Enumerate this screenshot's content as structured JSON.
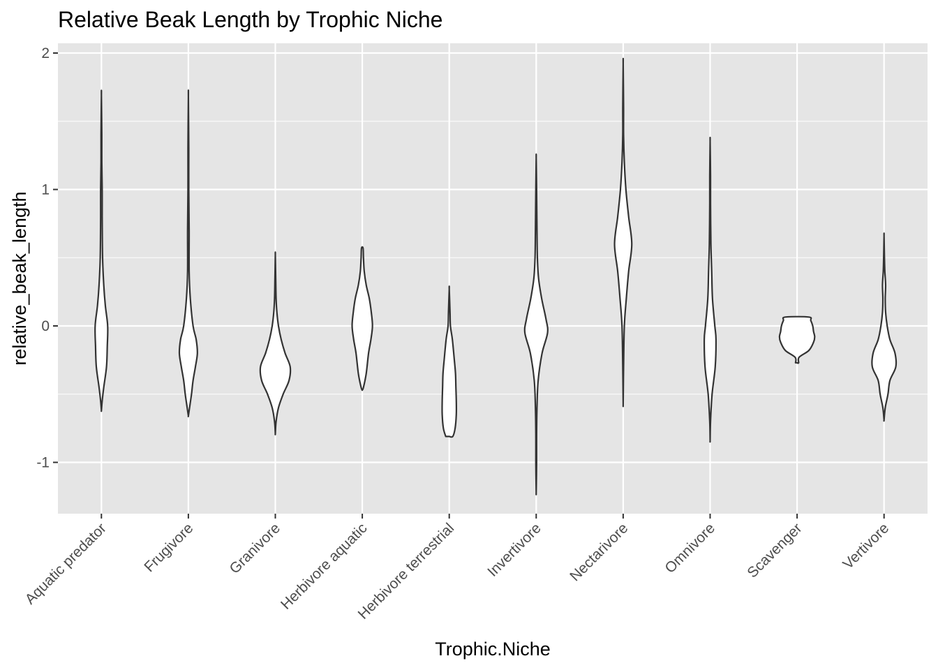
{
  "chart_data": {
    "type": "violin",
    "title": "Relative Beak Length by Trophic Niche",
    "xlabel": "Trophic.Niche",
    "ylabel": "relative_beak_length",
    "ylim": [
      -1.38,
      2.05
    ],
    "yticks": [
      -1,
      0,
      1,
      2
    ],
    "ytick_labels": [
      "-1",
      "0",
      "1",
      "2"
    ],
    "categories": [
      "Aquatic predator",
      "Frugivore",
      "Granivore",
      "Herbivore aquatic",
      "Herbivore terrestrial",
      "Invertivore",
      "Nectarivore",
      "Omnivore",
      "Scavenger",
      "Vertivore"
    ],
    "grid": true,
    "colors": {
      "panel": "#e5e5e5",
      "grid": "#ffffff",
      "violin_fill": "#ffffff",
      "violin_stroke": "#333333"
    },
    "violins": [
      {
        "category": "Aquatic predator",
        "profile": [
          [
            -0.62,
            0.0
          ],
          [
            -0.55,
            0.02
          ],
          [
            -0.45,
            0.06
          ],
          [
            -0.3,
            0.13
          ],
          [
            -0.15,
            0.15
          ],
          [
            0.0,
            0.16
          ],
          [
            0.15,
            0.1
          ],
          [
            0.3,
            0.06
          ],
          [
            0.5,
            0.03
          ],
          [
            0.8,
            0.02
          ],
          [
            1.0,
            0.02
          ],
          [
            1.2,
            0.01
          ],
          [
            1.4,
            0.01
          ],
          [
            1.69,
            0.0
          ]
        ]
      },
      {
        "category": "Frugivore",
        "profile": [
          [
            -0.66,
            0.0
          ],
          [
            -0.6,
            0.03
          ],
          [
            -0.5,
            0.08
          ],
          [
            -0.4,
            0.12
          ],
          [
            -0.3,
            0.18
          ],
          [
            -0.2,
            0.23
          ],
          [
            -0.1,
            0.2
          ],
          [
            0.0,
            0.12
          ],
          [
            0.2,
            0.05
          ],
          [
            0.4,
            0.02
          ],
          [
            0.7,
            0.02
          ],
          [
            1.0,
            0.01
          ],
          [
            1.3,
            0.01
          ],
          [
            1.68,
            0.0
          ]
        ]
      },
      {
        "category": "Granivore",
        "profile": [
          [
            -0.79,
            0.0
          ],
          [
            -0.7,
            0.02
          ],
          [
            -0.6,
            0.08
          ],
          [
            -0.5,
            0.2
          ],
          [
            -0.4,
            0.35
          ],
          [
            -0.3,
            0.38
          ],
          [
            -0.2,
            0.25
          ],
          [
            -0.1,
            0.15
          ],
          [
            0.0,
            0.08
          ],
          [
            0.1,
            0.04
          ],
          [
            0.2,
            0.02
          ],
          [
            0.35,
            0.01
          ],
          [
            0.52,
            0.0
          ]
        ]
      },
      {
        "category": "Herbivore aquatic",
        "profile": [
          [
            -0.47,
            0.0
          ],
          [
            -0.45,
            0.03
          ],
          [
            -0.35,
            0.1
          ],
          [
            -0.2,
            0.16
          ],
          [
            -0.1,
            0.22
          ],
          [
            0.0,
            0.26
          ],
          [
            0.1,
            0.23
          ],
          [
            0.2,
            0.18
          ],
          [
            0.3,
            0.1
          ],
          [
            0.4,
            0.05
          ],
          [
            0.5,
            0.03
          ],
          [
            0.57,
            0.02
          ]
        ]
      },
      {
        "category": "Herbivore terrestrial",
        "profile": [
          [
            -0.81,
            0.09
          ],
          [
            -0.75,
            0.15
          ],
          [
            -0.65,
            0.18
          ],
          [
            -0.55,
            0.18
          ],
          [
            -0.45,
            0.17
          ],
          [
            -0.35,
            0.16
          ],
          [
            -0.25,
            0.13
          ],
          [
            -0.1,
            0.08
          ],
          [
            0.0,
            0.03
          ],
          [
            0.1,
            0.02
          ],
          [
            0.27,
            0.0
          ]
        ]
      },
      {
        "category": "Invertivore",
        "profile": [
          [
            -1.22,
            0.0
          ],
          [
            -1.0,
            0.01
          ],
          [
            -0.8,
            0.01
          ],
          [
            -0.6,
            0.02
          ],
          [
            -0.4,
            0.05
          ],
          [
            -0.2,
            0.15
          ],
          [
            -0.05,
            0.29
          ],
          [
            0.05,
            0.25
          ],
          [
            0.2,
            0.14
          ],
          [
            0.35,
            0.06
          ],
          [
            0.5,
            0.03
          ],
          [
            0.7,
            0.02
          ],
          [
            1.0,
            0.01
          ],
          [
            1.23,
            0.0
          ]
        ]
      },
      {
        "category": "Nectarivore",
        "profile": [
          [
            -0.57,
            0.0
          ],
          [
            -0.3,
            0.01
          ],
          [
            0.0,
            0.03
          ],
          [
            0.2,
            0.08
          ],
          [
            0.4,
            0.14
          ],
          [
            0.6,
            0.22
          ],
          [
            0.8,
            0.14
          ],
          [
            1.0,
            0.07
          ],
          [
            1.2,
            0.03
          ],
          [
            1.4,
            0.01
          ],
          [
            1.6,
            0.01
          ],
          [
            1.92,
            0.0
          ]
        ]
      },
      {
        "category": "Omnivore",
        "profile": [
          [
            -0.84,
            0.0
          ],
          [
            -0.7,
            0.01
          ],
          [
            -0.5,
            0.05
          ],
          [
            -0.3,
            0.13
          ],
          [
            -0.1,
            0.15
          ],
          [
            0.0,
            0.12
          ],
          [
            0.2,
            0.06
          ],
          [
            0.4,
            0.04
          ],
          [
            0.6,
            0.02
          ],
          [
            0.9,
            0.01
          ],
          [
            1.1,
            0.01
          ],
          [
            1.35,
            0.0
          ]
        ]
      },
      {
        "category": "Scavenger",
        "profile": [
          [
            -0.27,
            0.04
          ],
          [
            -0.23,
            0.05
          ],
          [
            -0.18,
            0.3
          ],
          [
            -0.12,
            0.42
          ],
          [
            -0.08,
            0.45
          ],
          [
            -0.04,
            0.42
          ],
          [
            0.0,
            0.4
          ],
          [
            0.04,
            0.35
          ],
          [
            0.065,
            0.3
          ]
        ]
      },
      {
        "category": "Vertivore",
        "profile": [
          [
            -0.69,
            0.0
          ],
          [
            -0.6,
            0.03
          ],
          [
            -0.5,
            0.1
          ],
          [
            -0.4,
            0.15
          ],
          [
            -0.3,
            0.3
          ],
          [
            -0.2,
            0.28
          ],
          [
            -0.1,
            0.15
          ],
          [
            0.0,
            0.08
          ],
          [
            0.1,
            0.04
          ],
          [
            0.2,
            0.03
          ],
          [
            0.3,
            0.04
          ],
          [
            0.4,
            0.02
          ],
          [
            0.5,
            0.01
          ],
          [
            0.66,
            0.0
          ]
        ]
      }
    ]
  }
}
